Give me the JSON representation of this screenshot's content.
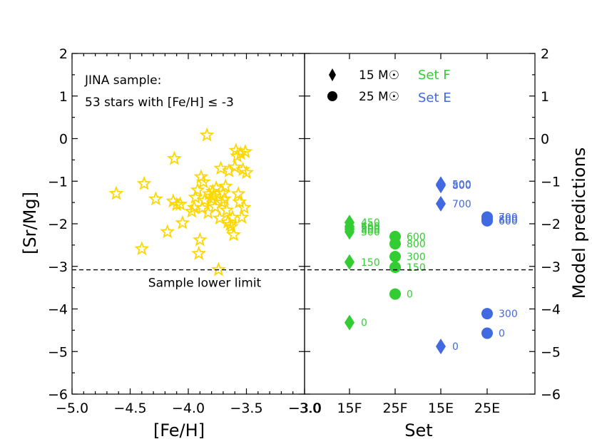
{
  "chart_data": [
    {
      "type": "scatter",
      "panel": "left",
      "xlabel": "[Fe/H]",
      "ylabel": "[Sr/Mg]",
      "xlim": [
        -5.0,
        -3.0
      ],
      "ylim": [
        -6,
        2
      ],
      "xticks": [
        "−5.0",
        "−4.5",
        "−4.0",
        "−3.5",
        "−3.0"
      ],
      "yticks": [
        "2",
        "1",
        "0",
        "−1",
        "−2",
        "−3",
        "−4",
        "−5",
        "−6"
      ],
      "annotation_line1": "JINA sample:",
      "annotation_line2": "53 stars with [Fe/H] ≤ -3",
      "hline": {
        "y": -3.08,
        "label": "Sample lower limit"
      },
      "marker_color": "#FFD700",
      "points": [
        [
          -4.62,
          -1.29
        ],
        [
          -4.4,
          -2.59
        ],
        [
          -4.38,
          -1.06
        ],
        [
          -4.28,
          -1.42
        ],
        [
          -4.18,
          -2.19
        ],
        [
          -4.13,
          -1.47
        ],
        [
          -4.12,
          -0.47
        ],
        [
          -4.1,
          -1.55
        ],
        [
          -4.07,
          -1.54
        ],
        [
          -4.05,
          -1.98
        ],
        [
          -3.97,
          -1.71
        ],
        [
          -3.95,
          -1.62
        ],
        [
          -3.94,
          -1.38
        ],
        [
          -3.92,
          -1.21
        ],
        [
          -3.91,
          -2.7
        ],
        [
          -3.9,
          -2.38
        ],
        [
          -3.89,
          -0.9
        ],
        [
          -3.88,
          -1.63
        ],
        [
          -3.87,
          -1.02
        ],
        [
          -3.86,
          -1.45
        ],
        [
          -3.84,
          0.08
        ],
        [
          -3.83,
          -1.74
        ],
        [
          -3.82,
          -1.3
        ],
        [
          -3.8,
          -1.42
        ],
        [
          -3.79,
          -1.24
        ],
        [
          -3.78,
          -1.35
        ],
        [
          -3.77,
          -1.6
        ],
        [
          -3.76,
          -1.16
        ],
        [
          -3.74,
          -3.08
        ],
        [
          -3.73,
          -1.87
        ],
        [
          -3.72,
          -0.7
        ],
        [
          -3.71,
          -1.5
        ],
        [
          -3.7,
          -1.28
        ],
        [
          -3.69,
          -1.42
        ],
        [
          -3.68,
          -1.12
        ],
        [
          -3.67,
          -1.68
        ],
        [
          -3.66,
          -1.96
        ],
        [
          -3.65,
          -0.76
        ],
        [
          -3.64,
          -2.02
        ],
        [
          -3.63,
          -2.07
        ],
        [
          -3.62,
          -1.85
        ],
        [
          -3.61,
          -2.26
        ],
        [
          -3.6,
          -0.67
        ],
        [
          -3.59,
          -0.28
        ],
        [
          -3.58,
          -0.41
        ],
        [
          -3.57,
          -1.3
        ],
        [
          -3.56,
          -1.49
        ],
        [
          -3.55,
          -0.35
        ],
        [
          -3.54,
          -1.85
        ],
        [
          -3.53,
          -0.73
        ],
        [
          -3.52,
          -1.62
        ],
        [
          -3.51,
          -0.31
        ],
        [
          -3.5,
          -0.8
        ]
      ]
    },
    {
      "type": "scatter",
      "panel": "right",
      "xlabel": "Set",
      "ylabel": "Model predictions",
      "categories": [
        "15F",
        "25F",
        "15E",
        "25E"
      ],
      "xtick_start": "−3.0",
      "ylim": [
        -6,
        2
      ],
      "yticks": [
        "2",
        "1",
        "0",
        "−1",
        "−2",
        "−3",
        "−4",
        "−5",
        "−6"
      ],
      "legend": {
        "diamond_label": "15 M☉",
        "circle_label": "25 M☉",
        "set_f_label": "Set F",
        "set_e_label": "Set E"
      },
      "colors": {
        "set_f": "#33CC33",
        "set_e": "#4169E1"
      },
      "series": [
        {
          "name": "15F",
          "marker": "diamond",
          "color": "#33CC33",
          "points": [
            {
              "y": -1.97,
              "label": "450"
            },
            {
              "y": -2.06,
              "label": "600"
            },
            {
              "y": -2.1,
              "label": "300"
            },
            {
              "y": -2.14,
              "label": "800"
            },
            {
              "y": -2.19,
              "label": "500"
            },
            {
              "y": -2.9,
              "label": "150"
            },
            {
              "y": -4.32,
              "label": "0"
            }
          ]
        },
        {
          "name": "25F",
          "marker": "circle",
          "color": "#33CC33",
          "points": [
            {
              "y": -2.3,
              "label": "600"
            },
            {
              "y": -2.47,
              "label": "800"
            },
            {
              "y": -2.77,
              "label": "300"
            },
            {
              "y": -3.02,
              "label": "150"
            },
            {
              "y": -3.65,
              "label": "0"
            }
          ]
        },
        {
          "name": "15E",
          "marker": "diamond",
          "color": "#4169E1",
          "points": [
            {
              "y": -1.07,
              "label": "500"
            },
            {
              "y": -1.1,
              "label": "800"
            },
            {
              "y": -1.53,
              "label": "700"
            },
            {
              "y": -4.88,
              "label": "0"
            }
          ]
        },
        {
          "name": "25E",
          "marker": "circle",
          "color": "#4169E1",
          "points": [
            {
              "y": -1.84,
              "label": "700"
            },
            {
              "y": -1.89,
              "label": "800"
            },
            {
              "y": -1.93,
              "label": "600"
            },
            {
              "y": -4.11,
              "label": "300"
            },
            {
              "y": -4.57,
              "label": "0"
            }
          ]
        }
      ]
    }
  ]
}
